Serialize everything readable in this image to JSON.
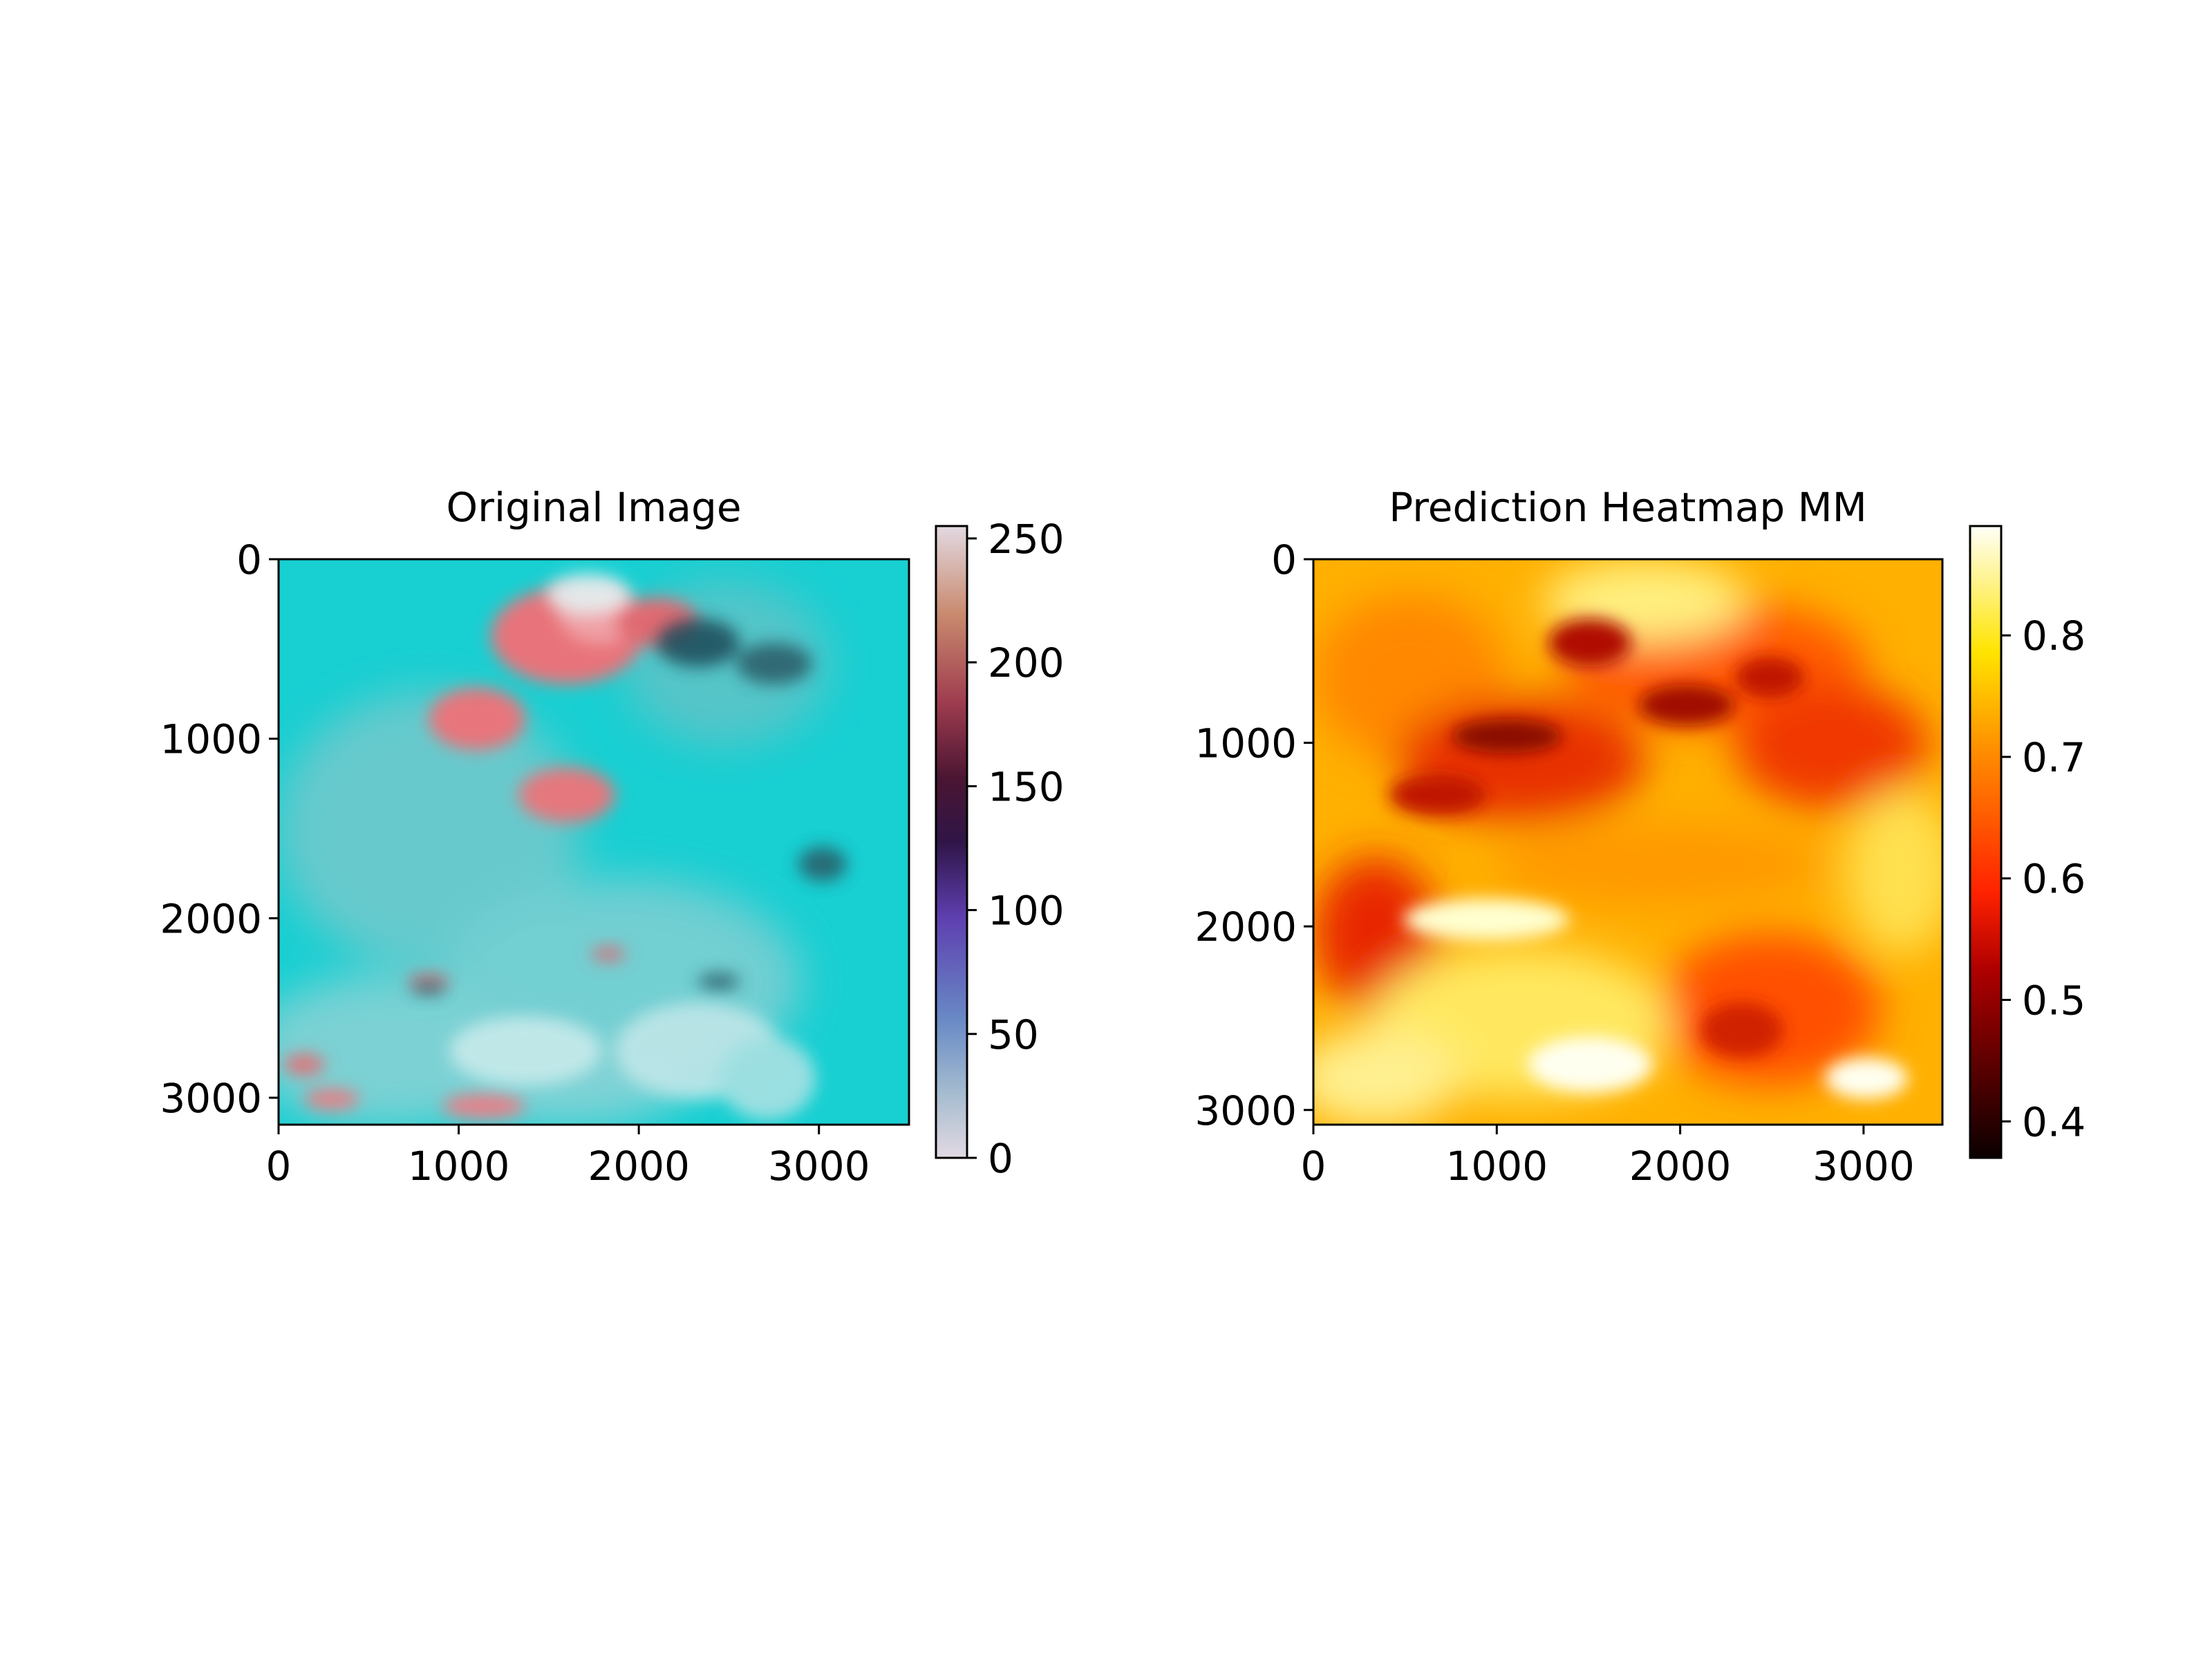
{
  "chart_data": [
    {
      "type": "heatmap",
      "title": "Original Image",
      "x_ticks": [
        "0",
        "1000",
        "2000",
        "3000"
      ],
      "y_ticks": [
        "0",
        "1000",
        "2000",
        "3000"
      ],
      "xlim": [
        0,
        3500
      ],
      "ylim": [
        3150,
        0
      ],
      "colorbar": {
        "colormap": "twilight",
        "ticks": [
          "0",
          "50",
          "100",
          "150",
          "200",
          "250"
        ],
        "range": [
          0,
          255
        ]
      },
      "image_palette": {
        "base": "#18cfd2",
        "cloud_pink": "#e8737a",
        "cloud_dark": "#1d4a58",
        "haze_white": "#e6eff0"
      }
    },
    {
      "type": "heatmap",
      "title": "Prediction Heatmap MM",
      "x_ticks": [
        "0",
        "1000",
        "2000",
        "3000"
      ],
      "y_ticks": [
        "0",
        "1000",
        "2000",
        "3000"
      ],
      "xlim": [
        0,
        3430
      ],
      "ylim": [
        3080,
        0
      ],
      "colorbar": {
        "colormap": "hot",
        "ticks": [
          "0.4",
          "0.5",
          "0.6",
          "0.7",
          "0.8"
        ],
        "range": [
          0.37,
          0.89
        ]
      },
      "image_palette": {
        "high": "#ffffe0",
        "mid": "#ffd000",
        "low": "#e32300",
        "min": "#5a0000"
      }
    }
  ]
}
